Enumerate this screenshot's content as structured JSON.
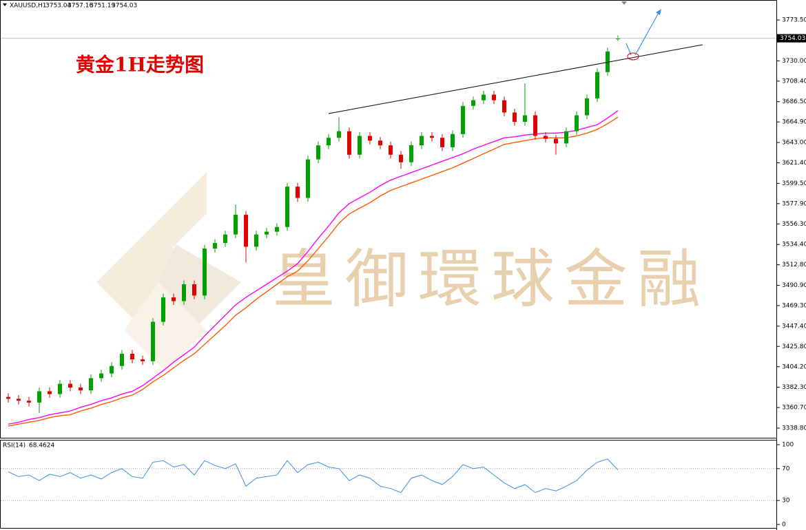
{
  "chart_data": [
    {
      "type": "candlestick",
      "symbol": "XAUUSD,H1",
      "title": "黄金1H走势图",
      "watermark": "皇御環球金融",
      "up_color": "#00a000",
      "down_color": "#e00000",
      "open": [
        3372,
        3370,
        3368,
        3366,
        3378,
        3375,
        3386,
        3382,
        3379,
        3392,
        3397,
        3405,
        3418,
        3412,
        3410,
        3452,
        3478,
        3474,
        3492,
        3480,
        3530,
        3536,
        3545,
        3566,
        3532,
        3545,
        3548,
        3553,
        3596,
        3584,
        3625,
        3640,
        3648,
        3655,
        3630,
        3650,
        3645,
        3640,
        3630,
        3622,
        3640,
        3650,
        3648,
        3638,
        3652,
        3682,
        3688,
        3694,
        3688,
        3675,
        3665,
        3672,
        3650,
        3647,
        3642,
        3655,
        3672,
        3690,
        3718,
        3753.04
      ],
      "high": [
        3376,
        3374,
        3372,
        3382,
        3382,
        3390,
        3390,
        3386,
        3396,
        3401,
        3409,
        3422,
        3422,
        3416,
        3456,
        3482,
        3482,
        3496,
        3496,
        3534,
        3540,
        3549,
        3577,
        3570,
        3549,
        3552,
        3557,
        3600,
        3600,
        3629,
        3644,
        3652,
        3670,
        3659,
        3654,
        3654,
        3649,
        3644,
        3634,
        3644,
        3654,
        3654,
        3652,
        3656,
        3686,
        3692,
        3698,
        3698,
        3692,
        3679,
        3706,
        3676,
        3654,
        3651,
        3659,
        3676,
        3694,
        3722,
        3744,
        3757.16
      ],
      "low": [
        3366,
        3364,
        3362,
        3355,
        3371,
        3371,
        3378,
        3375,
        3375,
        3388,
        3393,
        3401,
        3408,
        3406,
        3406,
        3448,
        3470,
        3470,
        3476,
        3476,
        3526,
        3532,
        3541,
        3515,
        3528,
        3541,
        3544,
        3549,
        3580,
        3580,
        3621,
        3636,
        3644,
        3626,
        3626,
        3641,
        3636,
        3626,
        3615,
        3618,
        3636,
        3644,
        3634,
        3634,
        3648,
        3678,
        3684,
        3684,
        3671,
        3661,
        3661,
        3646,
        3643,
        3630,
        3638,
        3651,
        3668,
        3686,
        3714,
        3751.19
      ],
      "close": [
        3370,
        3368,
        3366,
        3378,
        3375,
        3386,
        3382,
        3379,
        3392,
        3397,
        3405,
        3418,
        3412,
        3410,
        3452,
        3478,
        3474,
        3492,
        3480,
        3530,
        3536,
        3545,
        3566,
        3532,
        3545,
        3548,
        3553,
        3596,
        3584,
        3625,
        3640,
        3648,
        3655,
        3630,
        3650,
        3645,
        3640,
        3630,
        3622,
        3640,
        3650,
        3648,
        3638,
        3652,
        3682,
        3688,
        3694,
        3688,
        3675,
        3665,
        3672,
        3650,
        3647,
        3642,
        3655,
        3672,
        3690,
        3718,
        3740,
        3754.03
      ],
      "lines": [
        {
          "color": "#ff00ff",
          "values": [
            3343,
            3345,
            3348,
            3350,
            3353,
            3355,
            3357,
            3361,
            3364,
            3368,
            3371,
            3375,
            3378,
            3384,
            3392,
            3400,
            3409,
            3417,
            3425,
            3437,
            3448,
            3459,
            3470,
            3478,
            3485,
            3492,
            3499,
            3506,
            3514,
            3527,
            3541,
            3554,
            3568,
            3578,
            3584,
            3590,
            3597,
            3603,
            3607,
            3611,
            3615,
            3619,
            3623,
            3627,
            3631,
            3636,
            3640,
            3644,
            3648,
            3649,
            3651,
            3652,
            3653,
            3653,
            3654,
            3656,
            3659,
            3662,
            3669,
            3677
          ]
        },
        {
          "color": "#ff5a00",
          "values": [
            3341,
            3343,
            3345,
            3347,
            3350,
            3352,
            3353,
            3357,
            3360,
            3364,
            3367,
            3371,
            3374,
            3380,
            3388,
            3395,
            3403,
            3411,
            3418,
            3428,
            3438,
            3448,
            3459,
            3467,
            3476,
            3484,
            3492,
            3500,
            3506,
            3517,
            3530,
            3543,
            3557,
            3567,
            3573,
            3579,
            3586,
            3592,
            3596,
            3600,
            3604,
            3608,
            3612,
            3616,
            3621,
            3626,
            3631,
            3636,
            3641,
            3643,
            3645,
            3647,
            3648,
            3648,
            3648,
            3650,
            3653,
            3657,
            3663,
            3670
          ]
        }
      ],
      "ylim": [
        3328.5,
        3794.8
      ],
      "yticks": [
        {
          "value": 3773.5,
          "label": "3773.50"
        },
        {
          "value": 3730,
          "label": "3730.00"
        },
        {
          "value": 3708.4,
          "label": "3708.40"
        },
        {
          "value": 3686.5,
          "label": "3686.50"
        },
        {
          "value": 3664.9,
          "label": "3664.90"
        },
        {
          "value": 3643,
          "label": "3643.00"
        },
        {
          "value": 3621.4,
          "label": "3621.40"
        },
        {
          "value": 3599.5,
          "label": "3599.50"
        },
        {
          "value": 3577.9,
          "label": "3577.90"
        },
        {
          "value": 3556.3,
          "label": "3556.30"
        },
        {
          "value": 3534.4,
          "label": "3534.40"
        },
        {
          "value": 3512.8,
          "label": "3512.80"
        },
        {
          "value": 3490.9,
          "label": "3490.90"
        },
        {
          "value": 3469.3,
          "label": "3469.30"
        },
        {
          "value": 3447.4,
          "label": "3447.40"
        },
        {
          "value": 3425.8,
          "label": "3425.80"
        },
        {
          "value": 3404.2,
          "label": "3404.20"
        },
        {
          "value": 3382.3,
          "label": "3382.30"
        },
        {
          "value": 3360.7,
          "label": "3360.70"
        },
        {
          "value": 3338.8,
          "label": "3338.80"
        }
      ]
    },
    {
      "type": "line",
      "name": "RSI(14)",
      "color": "#3a8ee6",
      "values": [
        66,
        60,
        62,
        55,
        63,
        60,
        65,
        58,
        62,
        57,
        65,
        70,
        60,
        58,
        78,
        80,
        72,
        75,
        62,
        80,
        74,
        70,
        76,
        48,
        58,
        60,
        62,
        80,
        65,
        75,
        78,
        72,
        70,
        55,
        62,
        58,
        48,
        45,
        40,
        58,
        62,
        55,
        50,
        60,
        75,
        70,
        72,
        62,
        52,
        45,
        50,
        40,
        45,
        42,
        48,
        55,
        68,
        78,
        82,
        68.4624
      ],
      "ylim": [
        -5.2,
        105.2
      ],
      "yticks": [
        100,
        70,
        30,
        0
      ]
    }
  ]
}
